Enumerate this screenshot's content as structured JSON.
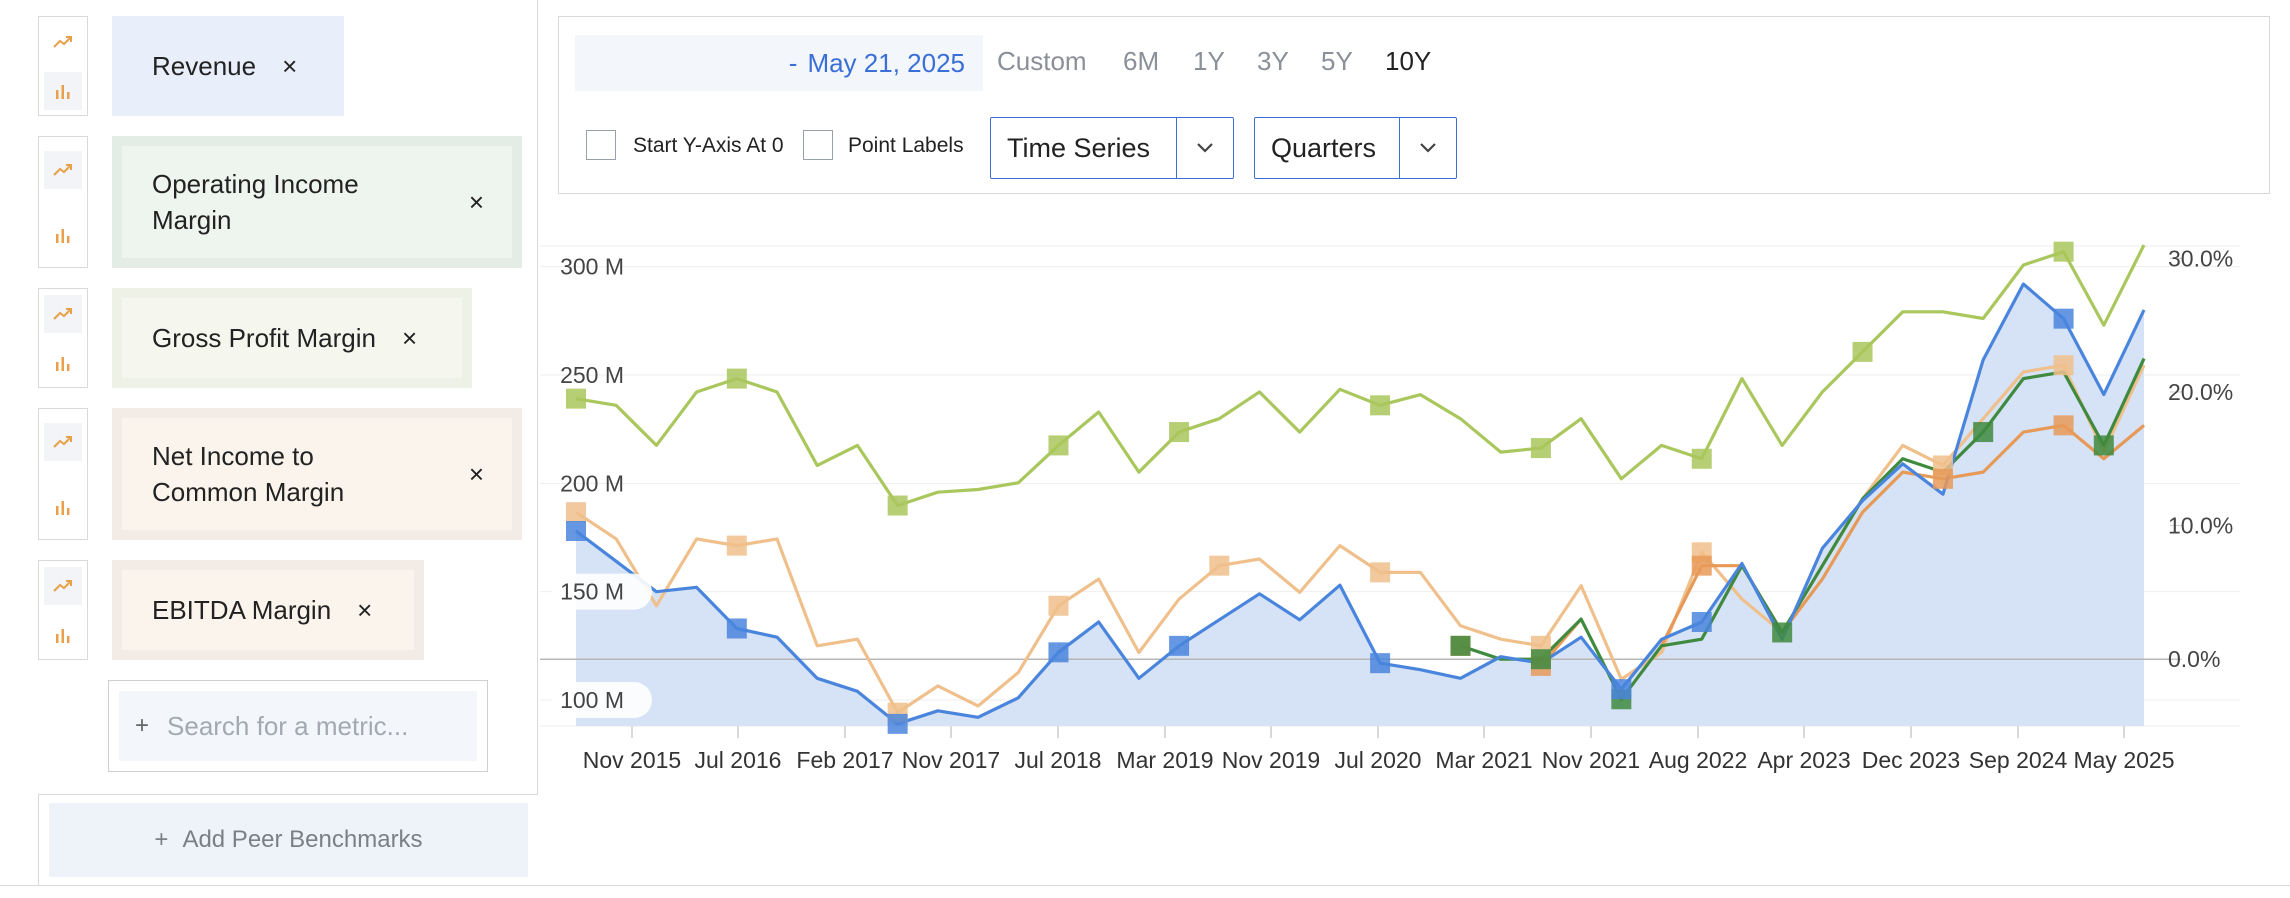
{
  "metrics": [
    {
      "label": "Revenue",
      "chart_type": "area",
      "chip_bg": "#e8effb",
      "chip_inner": "#e8effb"
    },
    {
      "label": "Operating Income Margin",
      "chart_type": "line",
      "chip_bg": "#e3ece5",
      "chip_inner": "#eef4ee"
    },
    {
      "label": "Gross Profit Margin",
      "chart_type": "line",
      "chip_bg": "#eef1e6",
      "chip_inner": "#f5f7ef"
    },
    {
      "label": "Net Income to Common Margin",
      "chart_type": "line",
      "chip_bg": "#f3ece6",
      "chip_inner": "#fbf4ec"
    },
    {
      "label": "EBITDA Margin",
      "chart_type": "line",
      "chip_bg": "#f3ece6",
      "chip_inner": "#fbf4ec"
    }
  ],
  "icons": {
    "line": "line-chart-icon",
    "bar": "bar-chart-icon",
    "close": "close-icon",
    "chevron": "chevron-down-icon",
    "plus": "plus-icon"
  },
  "close_glyph": "×",
  "plus_glyph": "+",
  "search": {
    "placeholder": "Search for a metric..."
  },
  "peer": {
    "label": "Add Peer Benchmarks"
  },
  "date": {
    "dash": "-",
    "end": "May 21, 2025"
  },
  "ranges": [
    {
      "label": "Custom",
      "active": false
    },
    {
      "label": "6M",
      "active": false
    },
    {
      "label": "1Y",
      "active": false
    },
    {
      "label": "3Y",
      "active": false
    },
    {
      "label": "5Y",
      "active": false
    },
    {
      "label": "10Y",
      "active": true
    }
  ],
  "options": {
    "start_y_axis": "Start Y-Axis At 0",
    "point_labels": "Point Labels"
  },
  "view_select": {
    "value": "Time Series"
  },
  "period_select": {
    "value": "Quarters"
  },
  "colors": {
    "accent": "#3a6fd8",
    "revenue": "#4a85dd",
    "revenue_fill": "#d6e2f6",
    "operating": "#3f8a3f",
    "gross": "#a9c75c",
    "net_income": "#e79a58",
    "ebitda": "#f0c08c",
    "icon_orange": "#e8a04a"
  },
  "chart_data": {
    "type": "line",
    "x": [
      "Jun 2015",
      "Sep 2015",
      "Dec 2015",
      "Mar 2016",
      "Jun 2016",
      "Sep 2016",
      "Dec 2016",
      "Mar 2017",
      "Jun 2017",
      "Sep 2017",
      "Dec 2017",
      "Mar 2018",
      "Jun 2018",
      "Sep 2018",
      "Dec 2018",
      "Mar 2019",
      "Jun 2019",
      "Sep 2019",
      "Dec 2019",
      "Mar 2020",
      "Jun 2020",
      "Sep 2020",
      "Dec 2020",
      "Mar 2021",
      "Jun 2021",
      "Sep 2021",
      "Dec 2021",
      "Mar 2022",
      "Jun 2022",
      "Sep 2022",
      "Dec 2022",
      "Mar 2023",
      "Jun 2023",
      "Sep 2023",
      "Dec 2023",
      "Mar 2024",
      "Jun 2024",
      "Sep 2024",
      "Dec 2024",
      "Mar 2025",
      "May 2025"
    ],
    "x_ticks": [
      "Nov 2015",
      "Jul 2016",
      "Feb 2017",
      "Nov 2017",
      "Jul 2018",
      "Mar 2019",
      "Nov 2019",
      "Jul 2020",
      "Mar 2021",
      "Nov 2021",
      "Aug 2022",
      "Apr 2023",
      "Dec 2023",
      "Sep 2024",
      "May 2025"
    ],
    "y_left": {
      "ticks": [
        "300 M",
        "250 M",
        "200 M",
        "150 M",
        "100 M"
      ],
      "range": [
        88,
        310
      ]
    },
    "y_right": {
      "ticks": [
        "30.0%",
        "20.0%",
        "10.0%",
        "0.0%"
      ],
      "range": [
        -5,
        31
      ]
    },
    "series": [
      {
        "name": "Revenue",
        "axis": "left",
        "kind": "area",
        "values": [
          178,
          164,
          150,
          152,
          133,
          129,
          110,
          104,
          89,
          95,
          92,
          101,
          122,
          136,
          110,
          125,
          137,
          149,
          137,
          153,
          117,
          114,
          110,
          120,
          117,
          129,
          105,
          128,
          136,
          163,
          128,
          170,
          192,
          209,
          195,
          257,
          292,
          276,
          241,
          280,
          null
        ],
        "markers": [
          0,
          4,
          8,
          12,
          15,
          20,
          26,
          28,
          37
        ]
      },
      {
        "name": "Operating Income Margin",
        "axis": "right",
        "kind": "line",
        "values": [
          null,
          null,
          null,
          null,
          null,
          null,
          null,
          null,
          null,
          null,
          null,
          null,
          null,
          null,
          null,
          null,
          null,
          null,
          null,
          null,
          null,
          null,
          1,
          0,
          0,
          3,
          -3,
          1,
          1.5,
          7,
          2,
          7,
          12,
          15,
          14,
          17,
          21,
          21.5,
          16,
          22.5,
          null
        ],
        "markers": [
          22,
          24,
          26,
          30,
          35,
          38
        ]
      },
      {
        "name": "Gross Profit Margin",
        "axis": "right",
        "kind": "line",
        "values": [
          19.5,
          19,
          16,
          20,
          21,
          20,
          14.5,
          16,
          11.5,
          12.5,
          12.7,
          13.2,
          16,
          18.5,
          14,
          17,
          18,
          20,
          17,
          20.2,
          19,
          19.8,
          18,
          15.5,
          15.8,
          18,
          13.5,
          16,
          15,
          21,
          16,
          20,
          23,
          26,
          26,
          25.5,
          29.5,
          30.5,
          25,
          31,
          null
        ],
        "markers": [
          0,
          4,
          8,
          12,
          15,
          20,
          24,
          28,
          32,
          37
        ]
      },
      {
        "name": "Net Income to Common Margin",
        "axis": "right",
        "kind": "line",
        "values": [
          null,
          null,
          null,
          null,
          null,
          null,
          null,
          null,
          null,
          null,
          null,
          null,
          null,
          null,
          null,
          null,
          null,
          null,
          null,
          null,
          null,
          null,
          1,
          null,
          -0.5,
          3,
          null,
          1,
          7,
          7,
          2,
          6,
          11,
          14,
          13.5,
          14,
          17,
          17.5,
          15,
          17.5,
          null
        ],
        "markers": [
          22,
          24,
          28,
          34,
          37
        ]
      },
      {
        "name": "EBITDA Margin",
        "axis": "right",
        "kind": "line",
        "values": [
          11,
          9,
          4,
          9,
          8.5,
          9,
          1,
          1.5,
          -4,
          -2,
          -3.5,
          -1,
          4,
          6,
          0.5,
          4.5,
          7,
          7.5,
          5,
          8.5,
          6.5,
          6.5,
          2.5,
          1.5,
          1,
          5.5,
          -1.5,
          0.5,
          8,
          4.5,
          2,
          7,
          12,
          16,
          14.5,
          18,
          21.5,
          22,
          15.5,
          22,
          null
        ],
        "markers": [
          0,
          4,
          8,
          12,
          16,
          20,
          24,
          28,
          34,
          37
        ]
      }
    ]
  }
}
